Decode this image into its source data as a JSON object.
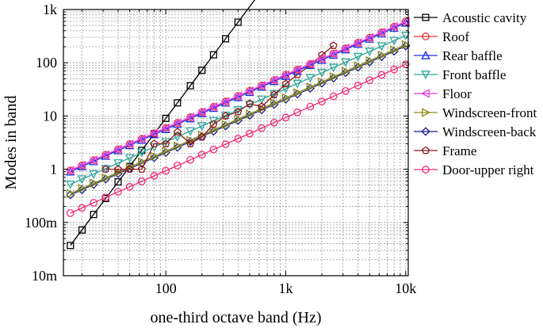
{
  "chart_data": {
    "type": "line",
    "title": "",
    "xlabel": "one-third octave band (Hz)",
    "ylabel": "Modes in band",
    "xscale": "log",
    "yscale": "log",
    "xlim": [
      14,
      10500
    ],
    "ylim": [
      0.01,
      1000
    ],
    "x_ticks": [
      {
        "v": 100,
        "label": "100"
      },
      {
        "v": 1000,
        "label": "1k"
      },
      {
        "v": 10000,
        "label": "10k"
      }
    ],
    "y_ticks": [
      {
        "v": 0.01,
        "label": "10m"
      },
      {
        "v": 0.1,
        "label": "100m"
      },
      {
        "v": 1,
        "label": "1"
      },
      {
        "v": 10,
        "label": "10"
      },
      {
        "v": 100,
        "label": "100"
      },
      {
        "v": 1000,
        "label": "1k"
      }
    ],
    "grid": true,
    "legend_position": "right",
    "series": [
      {
        "name": "Acoustic cavity",
        "color": "#000000",
        "marker": "square",
        "power_law": {
          "x0": 16,
          "y0": 0.037,
          "slope": 3.0
        },
        "x": [
          16,
          20,
          25,
          31.5,
          40,
          50,
          63,
          80,
          100,
          125,
          160,
          200,
          250,
          315,
          400,
          500,
          630,
          800,
          1000,
          1250,
          1600
        ]
      },
      {
        "name": "Roof",
        "color": "#e8322f",
        "marker": "circle",
        "power_law": {
          "x0": 16,
          "y0": 0.95,
          "slope": 1.0
        },
        "x": [
          16,
          20,
          25,
          31.5,
          40,
          50,
          63,
          80,
          100,
          125,
          160,
          200,
          250,
          315,
          400,
          500,
          630,
          800,
          1000,
          1250,
          1600,
          2000,
          2500,
          3150,
          4000,
          5000,
          6300,
          8000,
          10000
        ]
      },
      {
        "name": "Rear baffle",
        "color": "#1a2ee8",
        "marker": "triangle-up",
        "power_law": {
          "x0": 16,
          "y0": 0.9,
          "slope": 1.0
        },
        "x": [
          16,
          20,
          25,
          31.5,
          40,
          50,
          63,
          80,
          100,
          125,
          160,
          200,
          250,
          315,
          400,
          500,
          630,
          800,
          1000,
          1250,
          1600,
          2000,
          2500,
          3150,
          4000,
          5000,
          6300,
          8000,
          10000
        ]
      },
      {
        "name": "Front baffle",
        "color": "#2fa69a",
        "marker": "triangle-down",
        "power_law": {
          "x0": 16,
          "y0": 0.52,
          "slope": 1.0
        },
        "x": [
          16,
          20,
          25,
          31.5,
          40,
          50,
          63,
          80,
          100,
          125,
          160,
          200,
          250,
          315,
          400,
          500,
          630,
          800,
          1000,
          1250,
          1600,
          2000,
          2500,
          3150,
          4000,
          5000,
          6300,
          8000,
          10000
        ]
      },
      {
        "name": "Floor",
        "color": "#e83fe0",
        "marker": "triangle-left",
        "power_law": {
          "x0": 16,
          "y0": 0.95,
          "slope": 1.0
        },
        "x": [
          16,
          20,
          25,
          31.5,
          40,
          50,
          63,
          80,
          100,
          125,
          160,
          200,
          250,
          315,
          400,
          500,
          630,
          800,
          1000,
          1250,
          1600,
          2000,
          2500,
          3150,
          4000,
          5000,
          6300,
          8000,
          10000
        ]
      },
      {
        "name": "Windscreen-front",
        "color": "#8a8a1a",
        "marker": "triangle-right",
        "power_law": {
          "x0": 16,
          "y0": 0.35,
          "slope": 1.0
        },
        "x": [
          16,
          20,
          25,
          31.5,
          40,
          50,
          63,
          80,
          100,
          125,
          160,
          200,
          250,
          315,
          400,
          500,
          630,
          800,
          1000,
          1250,
          1600,
          2000,
          2500,
          3150,
          4000,
          5000,
          6300,
          8000,
          10000
        ]
      },
      {
        "name": "Windscreen-back",
        "color": "#1c1c8c",
        "marker": "diamond",
        "power_law": {
          "x0": 16,
          "y0": 0.33,
          "slope": 1.0
        },
        "x": [
          16,
          20,
          25,
          31.5,
          40,
          50,
          63,
          80,
          100,
          125,
          160,
          200,
          250,
          315,
          400,
          500,
          630,
          800,
          1000,
          1250,
          1600,
          2000,
          2500,
          3150,
          4000,
          5000,
          6300,
          8000,
          10000
        ]
      },
      {
        "name": "Frame",
        "color": "#8c1a1a",
        "marker": "pentagon",
        "x": [
          31.5,
          40,
          50,
          63,
          80,
          100,
          125,
          160,
          200,
          250,
          315,
          400,
          500,
          630,
          800,
          1000,
          1250,
          1600,
          2000,
          2500
        ],
        "y": [
          1,
          1,
          1,
          1,
          3,
          3,
          5,
          3,
          4,
          7,
          10,
          12,
          17,
          15,
          25,
          40,
          60,
          90,
          140,
          210
        ]
      },
      {
        "name": "Door-upper right",
        "color": "#f02a7a",
        "marker": "circle",
        "power_law": {
          "x0": 16,
          "y0": 0.15,
          "slope": 1.0
        },
        "x": [
          16,
          20,
          25,
          31.5,
          40,
          50,
          63,
          80,
          100,
          125,
          160,
          200,
          250,
          315,
          400,
          500,
          630,
          800,
          1000,
          1250,
          1600,
          2000,
          2500,
          3150,
          4000,
          5000,
          6300,
          8000,
          10000
        ]
      }
    ]
  }
}
